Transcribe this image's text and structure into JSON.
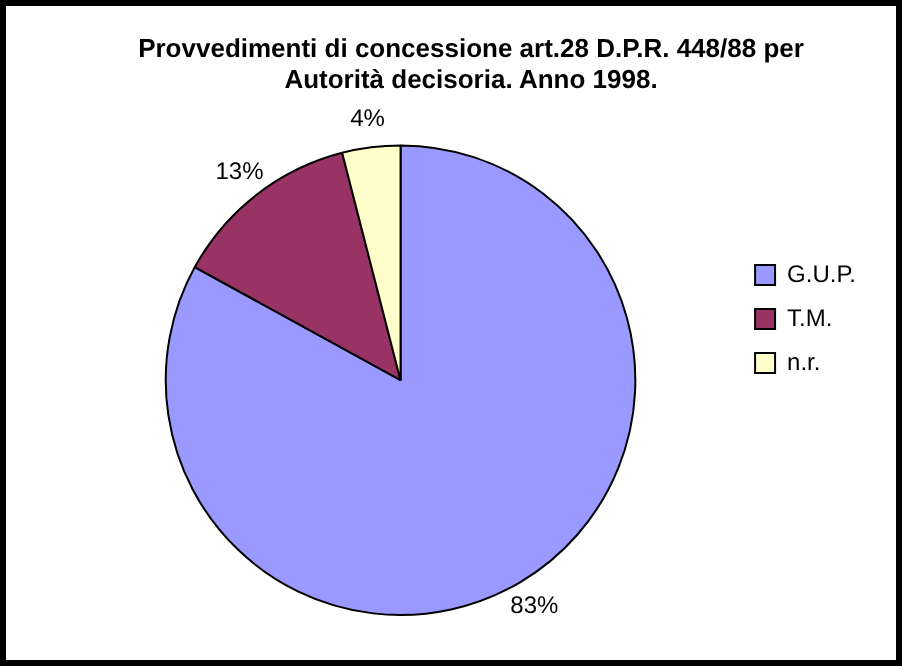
{
  "chart_data": {
    "type": "pie",
    "title": "Provvedimenti di concessione art.28 D.P.R. 448/88 per\nAutorità decisoria. Anno 1998.",
    "categories": [
      "G.U.P.",
      "T.M.",
      "n.r."
    ],
    "values": [
      83,
      13,
      4
    ],
    "colors": [
      "#9999ff",
      "#993366",
      "#ffffcc"
    ],
    "value_labels": [
      "83%",
      "13%",
      "4%"
    ],
    "legend": "right"
  }
}
